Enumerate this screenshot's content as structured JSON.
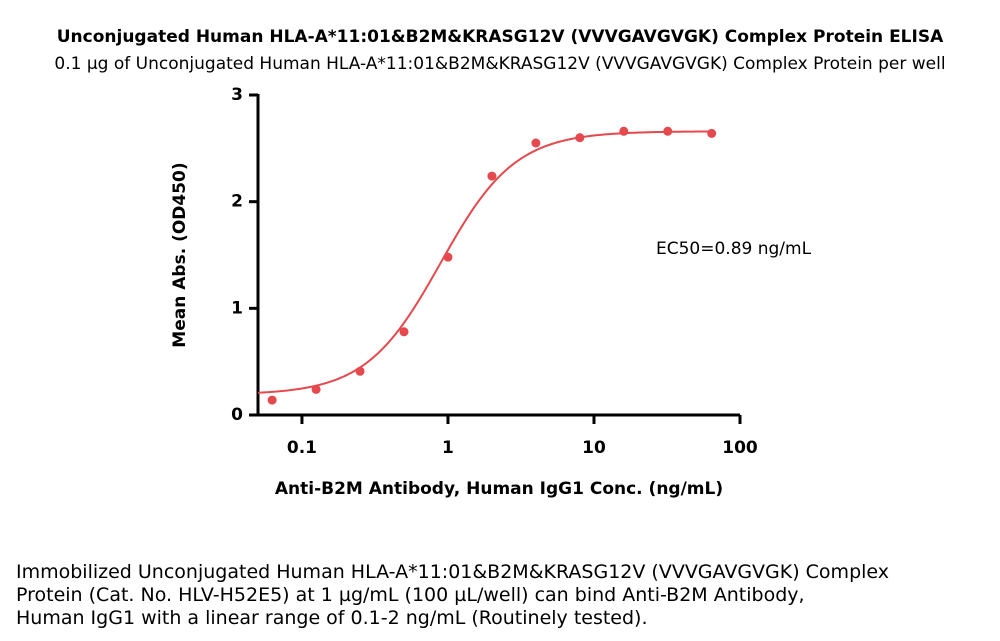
{
  "chart_data": {
    "type": "scatter",
    "title": "Unconjugated Human HLA-A*11:01&B2M&KRASG12V (VVVGAVGVGK) Complex Protein ELISA",
    "subtitle": "0.1 µg of Unconjugated Human HLA-A*11:01&B2M&KRASG12V (VVVGAVGVGK) Complex Protein per well",
    "x_label": "Anti-B2M Antibody, Human IgG1 Conc. (ng/mL)",
    "y_label": "Mean Abs. (OD450)",
    "annotation": "EC50=0.89 ng/mL",
    "x": [
      0.0625,
      0.125,
      0.25,
      0.5,
      1,
      2,
      4,
      8,
      16,
      32,
      64
    ],
    "values": [
      0.14,
      0.24,
      0.41,
      0.78,
      1.48,
      2.24,
      2.55,
      2.6,
      2.66,
      2.66,
      2.64
    ],
    "color": "#e5484d",
    "curve": {
      "bottom": 0.19,
      "top": 2.66,
      "ec50": 0.89,
      "hill": 1.7
    },
    "x_log": true,
    "xlim": [
      0.05,
      100
    ],
    "xticks": [
      0.1,
      1,
      10,
      100
    ],
    "ylim": [
      0,
      3
    ],
    "yticks": [
      0,
      1,
      2,
      3
    ]
  },
  "caption": [
    "Immobilized Unconjugated Human HLA-A*11:01&B2M&KRASG12V (VVVGAVGVGK) Complex",
    "Protein (Cat. No. HLV-H52E5) at 1 µg/mL (100 µL/well) can bind Anti-B2M Antibody,",
    "Human IgG1 with a linear range of 0.1-2 ng/mL (Routinely tested)."
  ]
}
